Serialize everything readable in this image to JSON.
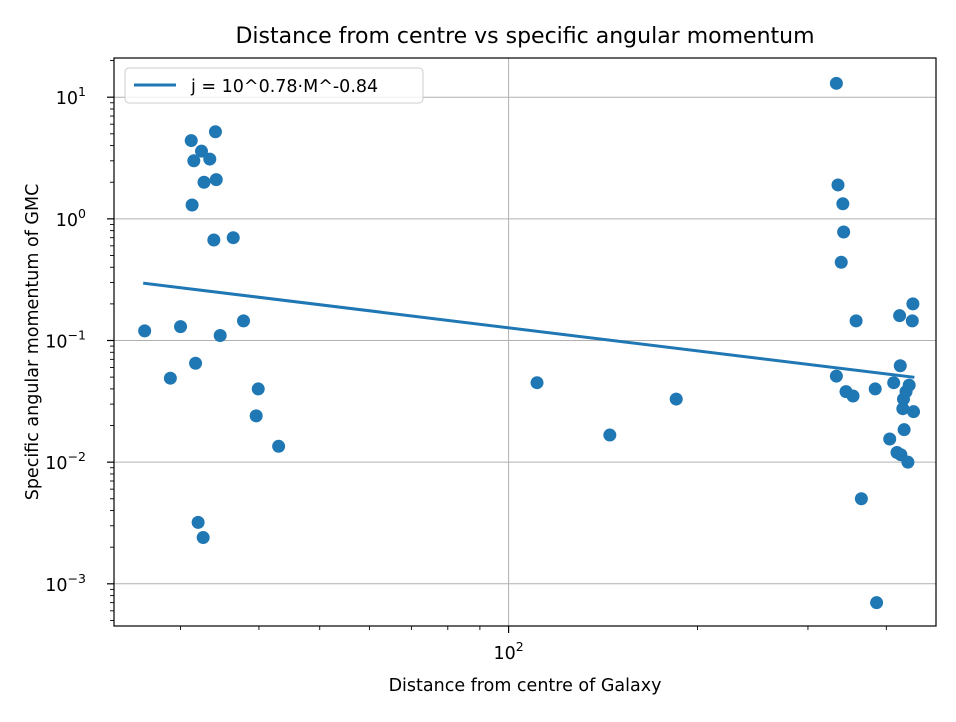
{
  "chart_data": {
    "type": "scatter",
    "title": "Distance from centre vs specific angular momentum",
    "xlabel": "Distance from centre of Galaxy",
    "ylabel": "Specific angular momentum of GMC",
    "xscale": "log",
    "yscale": "log",
    "xlim": [
      23.5,
      480
    ],
    "ylim": [
      0.00045,
      21
    ],
    "grid": true,
    "legend_position": "top-left",
    "x_major_ticks": [
      {
        "value": 100,
        "base": "10",
        "exp": "2"
      }
    ],
    "x_minor_ticks": [
      30,
      40,
      50,
      60,
      70,
      80,
      90,
      200,
      300,
      400
    ],
    "y_major_ticks": [
      {
        "value": 0.001,
        "base": "10",
        "exp": "−3"
      },
      {
        "value": 0.01,
        "base": "10",
        "exp": "−2"
      },
      {
        "value": 0.1,
        "base": "10",
        "exp": "−1"
      },
      {
        "value": 1,
        "base": "10",
        "exp": "0"
      },
      {
        "value": 10,
        "base": "10",
        "exp": "1"
      }
    ],
    "marker_color": "#1f77b4",
    "line_color": "#1f77b4",
    "series": [
      {
        "name": "",
        "kind": "scatter",
        "points": [
          [
            26.3,
            0.12
          ],
          [
            28.9,
            0.049
          ],
          [
            30.0,
            0.13
          ],
          [
            31.2,
            4.4
          ],
          [
            31.3,
            1.3
          ],
          [
            31.5,
            3.0
          ],
          [
            31.7,
            0.065
          ],
          [
            32.0,
            0.0032
          ],
          [
            32.4,
            3.6
          ],
          [
            32.6,
            0.0024
          ],
          [
            32.7,
            2.0
          ],
          [
            33.4,
            3.1
          ],
          [
            33.9,
            0.67
          ],
          [
            34.1,
            5.2
          ],
          [
            34.2,
            2.1
          ],
          [
            34.7,
            0.11
          ],
          [
            36.4,
            0.7
          ],
          [
            37.8,
            0.145
          ],
          [
            39.6,
            0.024
          ],
          [
            39.9,
            0.04
          ],
          [
            43.0,
            0.0135
          ],
          [
            111,
            0.045
          ],
          [
            145,
            0.0167
          ],
          [
            185,
            0.033
          ],
          [
            333,
            13.0
          ],
          [
            333,
            0.051
          ],
          [
            335,
            1.9
          ],
          [
            339,
            0.44
          ],
          [
            341,
            1.33
          ],
          [
            342,
            0.78
          ],
          [
            345,
            0.038
          ],
          [
            354,
            0.035
          ],
          [
            358,
            0.145
          ],
          [
            365,
            0.005
          ],
          [
            384,
            0.04
          ],
          [
            386,
            0.0007
          ],
          [
            405,
            0.0155
          ],
          [
            411,
            0.045
          ],
          [
            416,
            0.012
          ],
          [
            420,
            0.16
          ],
          [
            421,
            0.062
          ],
          [
            422,
            0.0115
          ],
          [
            425,
            0.0275
          ],
          [
            426,
            0.033
          ],
          [
            427,
            0.0185
          ],
          [
            430,
            0.038
          ],
          [
            433,
            0.01
          ],
          [
            435,
            0.043
          ],
          [
            440,
            0.145
          ],
          [
            441,
            0.2
          ],
          [
            442,
            0.026
          ]
        ]
      },
      {
        "name": "j = 10^0.78·M^-0.84",
        "kind": "line",
        "points": [
          [
            26.3,
            0.295
          ],
          [
            441,
            0.05
          ]
        ]
      }
    ]
  }
}
